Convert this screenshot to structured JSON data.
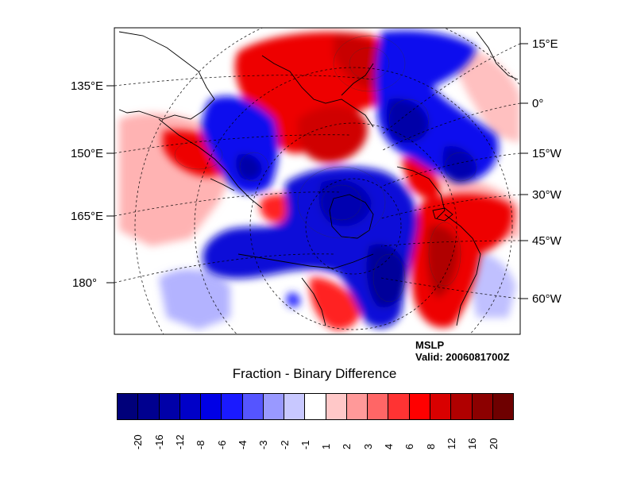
{
  "plot": {
    "title": "Fraction - Binary Difference",
    "field": "MSLP",
    "valid": "Valid: 2006081700Z"
  },
  "axes": {
    "left_labels": [
      "135°E",
      "150°E",
      "165°E",
      "180°"
    ],
    "right_labels": [
      "15°E",
      "0°",
      "15°W",
      "30°W",
      "45°W",
      "60°W"
    ]
  },
  "colorbar": {
    "labels": [
      "-20",
      "-16",
      "-12",
      "-8",
      "-6",
      "-4",
      "-3",
      "-2",
      "-1",
      "1",
      "2",
      "3",
      "4",
      "6",
      "8",
      "12",
      "16",
      "20"
    ],
    "colors": [
      "#00007a",
      "#00008f",
      "#0000a8",
      "#0000c8",
      "#0000e6",
      "#1a1aff",
      "#5555ff",
      "#9999ff",
      "#c8c8ff",
      "#ffffff",
      "#ffc8c8",
      "#ff9999",
      "#ff6666",
      "#ff3333",
      "#ff0000",
      "#d90000",
      "#b00000",
      "#8c0000",
      "#6e0000"
    ]
  }
}
